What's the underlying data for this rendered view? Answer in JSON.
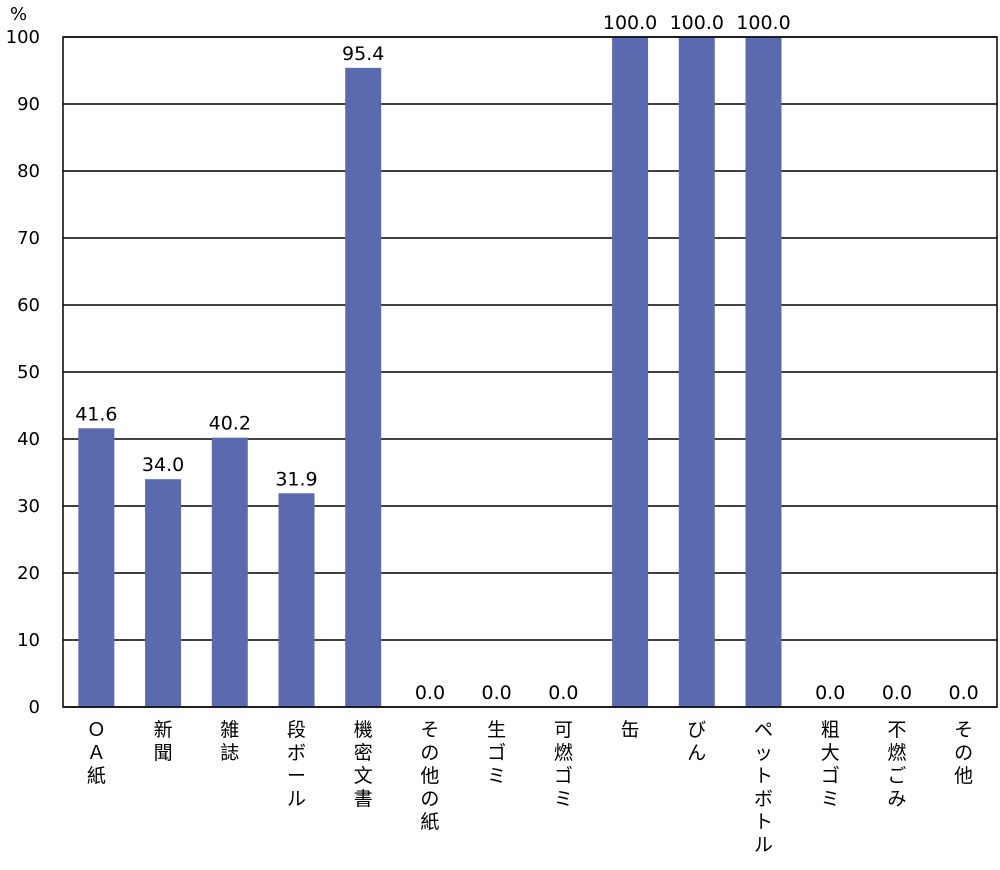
{
  "chart_data": {
    "type": "bar",
    "unit": "%",
    "categories": [
      "ＯＡ紙",
      "新聞",
      "雑誌",
      "段ボール",
      "機密文書",
      "その他の紙",
      "生ゴミ",
      "可燃ゴミ",
      "缶",
      "びん",
      "ペットボトル",
      "粗大ゴミ",
      "不燃ごみ",
      "その他"
    ],
    "values": [
      41.6,
      34.0,
      40.2,
      31.9,
      95.4,
      0.0,
      0.0,
      0.0,
      100.0,
      100.0,
      100.0,
      0.0,
      0.0,
      0.0
    ],
    "value_labels": [
      "41.6",
      "34.0",
      "40.2",
      "31.9",
      "95.4",
      "0.0",
      "0.0",
      "0.0",
      "100.0",
      "100.0",
      "100.0",
      "0.0",
      "0.0",
      "0.0"
    ],
    "yticks": [
      "0",
      "10",
      "20",
      "30",
      "40",
      "50",
      "60",
      "70",
      "80",
      "90",
      "100"
    ],
    "ylim": [
      0,
      100
    ],
    "grid": true,
    "bar_color": "#5b6aae",
    "title": "",
    "xlabel": "",
    "ylabel": ""
  }
}
